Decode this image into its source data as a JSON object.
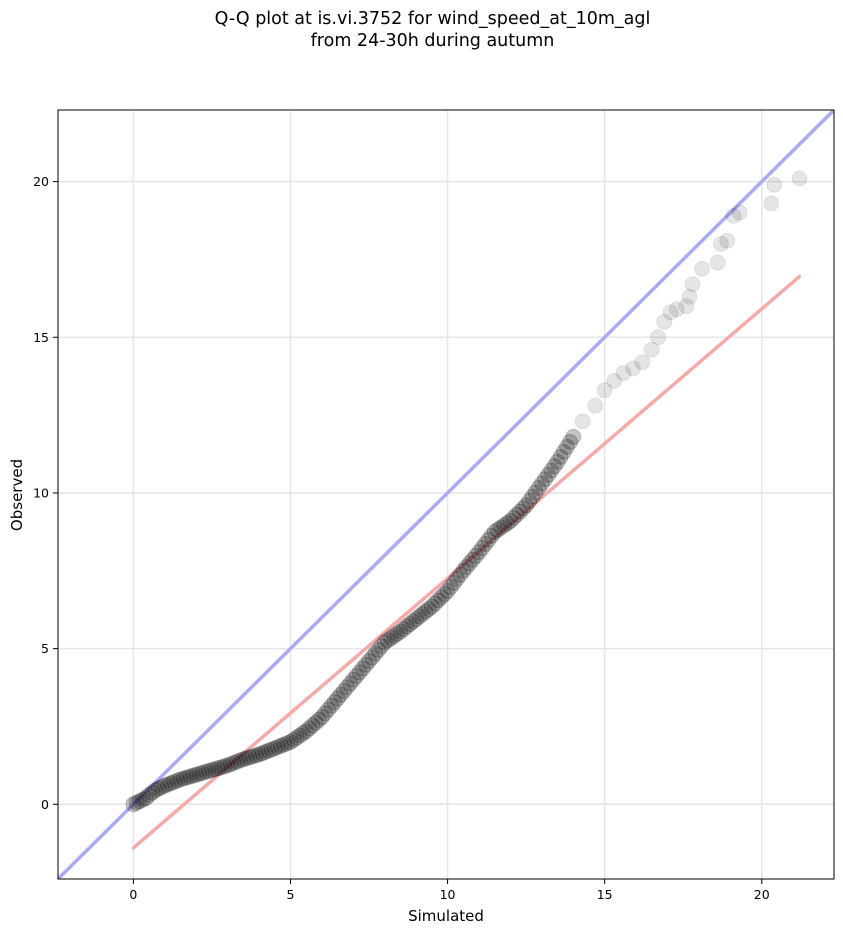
{
  "chart_data": {
    "type": "scatter",
    "title_line1": "Q-Q plot at is.vi.3752 for wind_speed_at_10m_agl",
    "title_line2": "from 24-30h during autumn",
    "xlabel": "Simulated",
    "ylabel": "Observed",
    "xlim": [
      -2.4,
      22.3
    ],
    "ylim": [
      -2.4,
      22.3
    ],
    "xticks": [
      0,
      5,
      10,
      15,
      20
    ],
    "yticks": [
      0,
      5,
      10,
      15,
      20
    ],
    "xtick_labels": [
      "0",
      "5",
      "10",
      "15",
      "20"
    ],
    "ytick_labels": [
      "0",
      "5",
      "10",
      "15",
      "20"
    ],
    "grid": true,
    "point_color": "#000000",
    "identity_line": {
      "color": "#aaaaf5",
      "from": [
        -2.4,
        -2.4
      ],
      "to": [
        22.3,
        22.3
      ]
    },
    "fit_line": {
      "color": "#f5aaaa",
      "from": [
        0.0,
        -1.4
      ],
      "to": [
        21.2,
        16.95
      ]
    },
    "quantiles": {
      "x": [
        0.0,
        0.1,
        0.2,
        0.3,
        0.4,
        0.5,
        0.7,
        1.0,
        1.5,
        2.0,
        2.5,
        3.0,
        3.5,
        4.0,
        4.5,
        5.0,
        5.5,
        6.0,
        6.5,
        7.0,
        7.5,
        8.0,
        8.5,
        9.0,
        9.5,
        10.0,
        10.5,
        11.0,
        11.5,
        12.0,
        12.5,
        13.0,
        13.5,
        14.0,
        14.3,
        14.7,
        15.0,
        15.3,
        15.6,
        15.9,
        16.2,
        16.5,
        16.7,
        16.9,
        17.1,
        17.3,
        17.6,
        17.7,
        17.8,
        18.1,
        18.6,
        18.7,
        18.9,
        19.1,
        19.3,
        20.3,
        20.4,
        21.2
      ],
      "y": [
        0.0,
        0.05,
        0.1,
        0.15,
        0.2,
        0.3,
        0.45,
        0.6,
        0.8,
        0.95,
        1.1,
        1.25,
        1.45,
        1.6,
        1.8,
        2.0,
        2.35,
        2.8,
        3.4,
        4.0,
        4.6,
        5.2,
        5.55,
        5.95,
        6.35,
        6.85,
        7.5,
        8.1,
        8.75,
        9.1,
        9.6,
        10.3,
        11.0,
        11.8,
        12.3,
        12.8,
        13.3,
        13.6,
        13.85,
        14.0,
        14.2,
        14.6,
        15.0,
        15.5,
        15.8,
        15.9,
        16.0,
        16.3,
        16.7,
        17.2,
        17.4,
        18.0,
        18.1,
        18.9,
        19.0,
        19.3,
        19.9,
        20.1
      ]
    }
  }
}
